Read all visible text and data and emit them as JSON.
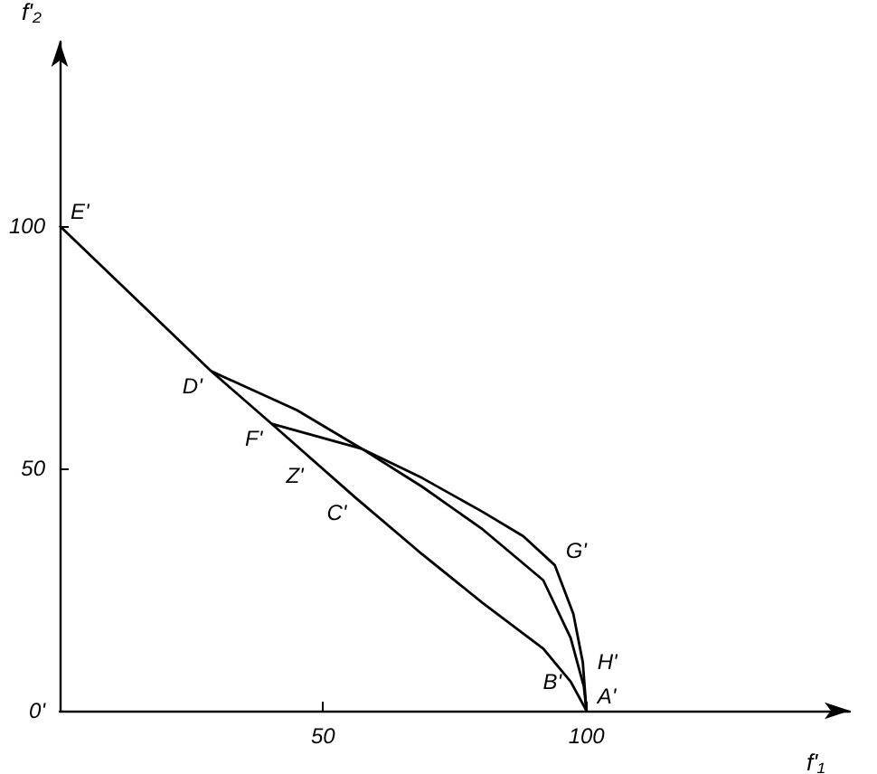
{
  "chart_data": {
    "type": "line",
    "xlabel": "f'₁",
    "ylabel": "f'₂",
    "xlim": [
      0,
      150
    ],
    "ylim": [
      0,
      138
    ],
    "xticks": [
      {
        "value": 0,
        "label": null
      },
      50,
      100
    ],
    "yticks": [
      {
        "value": 0,
        "label": "0'"
      },
      50,
      100
    ],
    "grid": false,
    "marker": "none",
    "line_style": "solid",
    "series": [
      {
        "color": "#000000",
        "x": [
          0,
          28.8,
          40.2,
          56.2,
          68,
          80.3,
          91.8,
          97,
          100
        ],
        "values": [
          100,
          70,
          59.2,
          43.9,
          33,
          22.2,
          12.8,
          6,
          0
        ]
      },
      {
        "color": "#000000",
        "x": [
          28.8,
          45,
          57.4,
          68.8,
          80.3,
          88,
          94,
          97.5,
          99.3,
          100
        ],
        "values": [
          70,
          62,
          54,
          48,
          41,
          36,
          30,
          20,
          10,
          0
        ]
      },
      {
        "color": "#000000",
        "x": [
          40.2,
          57.4,
          68.8,
          80.3,
          91.8,
          97,
          99.5,
          100
        ],
        "values": [
          59.2,
          54,
          46.2,
          37.4,
          26.9,
          15,
          5,
          0
        ]
      }
    ],
    "annotations": [
      {
        "text": "E'",
        "x": 0,
        "y": 100
      },
      {
        "text": "D'",
        "x": 28.8,
        "y": 70
      },
      {
        "text": "F'",
        "x": 40.2,
        "y": 59.2
      },
      {
        "text": "Z'",
        "x": 48,
        "y": 51.5
      },
      {
        "text": "C'",
        "x": 56.2,
        "y": 43.9
      },
      {
        "text": "G'",
        "x": 94,
        "y": 30
      },
      {
        "text": "H'",
        "x": 100,
        "y": 7
      },
      {
        "text": "B'",
        "x": 97,
        "y": 3
      },
      {
        "text": "A'",
        "x": 100,
        "y": 0
      }
    ]
  }
}
